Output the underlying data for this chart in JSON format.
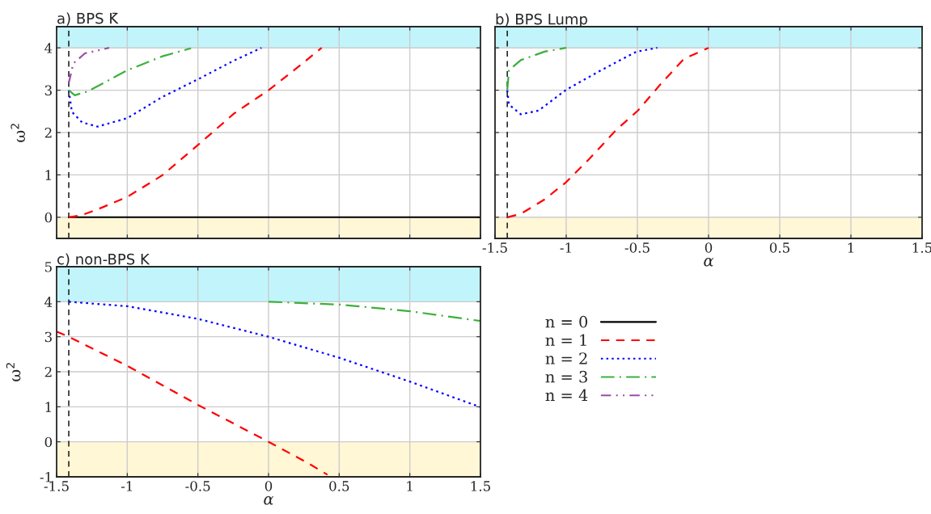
{
  "chart_data": [
    {
      "type": "line",
      "title": "a) BPS K̄",
      "ylabel": "ω$^{2}$",
      "xlim": [
        -1.5,
        1.5
      ],
      "xticks": [
        -1.5,
        -1,
        -0.5,
        0,
        0.5,
        1,
        1.5
      ],
      "ylim": [
        -0.5,
        4.5
      ],
      "yticks": [
        0,
        1,
        2,
        3,
        4
      ],
      "tick_labels": "y",
      "grid": true,
      "legend": "bottom right",
      "bands": [
        {
          "axis": "y",
          "from": 4,
          "to": 4.5,
          "color": "#c1f5fb"
        },
        {
          "axis": "y",
          "from": -0.5,
          "to": 0,
          "color": "#fff7d6"
        }
      ],
      "ref_lines": [
        {
          "axis": "x",
          "value": -1.414,
          "color": "#000000",
          "line_style": "dashed"
        }
      ],
      "series": [
        {
          "name": "n = 0",
          "color": "#000000",
          "line_style": "solid",
          "x": [
            -1.414,
            1.5
          ],
          "values": [
            0,
            0
          ]
        },
        {
          "name": "n = 1",
          "color": "#ff0000",
          "line_style": "dashed",
          "x": [
            -1.414,
            -1.321,
            -1.2,
            -1.0,
            -0.752,
            -0.498,
            -0.244,
            0,
            0.18,
            0.376
          ],
          "values": [
            0,
            0.05,
            0.2,
            0.48,
            0.99,
            1.71,
            2.45,
            3.0,
            3.47,
            4.0
          ]
        },
        {
          "name": "n = 2",
          "color": "#0000ff",
          "line_style": "dotted",
          "x": [
            -1.414,
            -1.392,
            -1.32,
            -1.21,
            -1.0,
            -0.752,
            -0.498,
            -0.244,
            -0.05
          ],
          "values": [
            3.0,
            2.49,
            2.24,
            2.14,
            2.34,
            2.84,
            3.26,
            3.7,
            4.0
          ]
        },
        {
          "name": "n = 3",
          "color": "#3cb03c",
          "line_style": "dashdot",
          "x": [
            -1.414,
            -1.372,
            -1.28,
            -1.0,
            -0.752,
            -0.549
          ],
          "values": [
            3.0,
            2.88,
            2.97,
            3.47,
            3.8,
            3.99
          ]
        },
        {
          "name": "n = 4",
          "color": "#9b4ea8",
          "line_style": "dashdotdot",
          "x": [
            -1.414,
            -1.382,
            -1.3,
            -1.128
          ],
          "values": [
            3.17,
            3.63,
            3.87,
            4.0
          ]
        }
      ]
    },
    {
      "type": "line",
      "title": "b) BPS Lump",
      "xlabel": "α",
      "xlim": [
        -1.5,
        1.5
      ],
      "xticks": [
        -1.5,
        -1,
        -0.5,
        0,
        0.5,
        1,
        1.5
      ],
      "ylim": [
        -0.5,
        4.5
      ],
      "yticks": [
        0,
        1,
        2,
        3,
        4
      ],
      "tick_labels": "x",
      "grid": true,
      "bands": [
        {
          "axis": "y",
          "from": 4,
          "to": 4.5,
          "color": "#c1f5fb"
        },
        {
          "axis": "y",
          "from": -0.5,
          "to": 0,
          "color": "#fff7d6"
        }
      ],
      "ref_lines": [
        {
          "axis": "x",
          "value": -1.414,
          "color": "#000000",
          "line_style": "dashed"
        }
      ],
      "series": [
        {
          "color": "#ff0000",
          "line_style": "dashed",
          "x": [
            -1.414,
            -1.319,
            -1.152,
            -1.0,
            -0.84,
            -0.652,
            -0.496,
            -0.34,
            -0.173,
            0
          ],
          "values": [
            0,
            0.08,
            0.42,
            0.83,
            1.37,
            2.05,
            2.52,
            3.13,
            3.74,
            4.0
          ]
        },
        {
          "color": "#0000ff",
          "line_style": "dotted",
          "x": [
            -1.414,
            -1.402,
            -1.319,
            -1.194,
            -1.0,
            -0.756,
            -0.506,
            -0.36
          ],
          "values": [
            3.0,
            2.66,
            2.43,
            2.52,
            3.01,
            3.47,
            3.91,
            4.0
          ]
        },
        {
          "color": "#3cb03c",
          "line_style": "dashdot",
          "x": [
            -1.414,
            -1.402,
            -1.319,
            -1.152,
            -1.0
          ],
          "values": [
            3.0,
            3.47,
            3.71,
            3.91,
            4.0
          ]
        }
      ]
    },
    {
      "type": "line",
      "title": "c) non-BPS K",
      "xlabel": "α",
      "ylabel": "ω$^{2}$",
      "xlim": [
        -1.5,
        1.5
      ],
      "xticks": [
        -1.5,
        -1,
        -0.5,
        0,
        0.5,
        1,
        1.5
      ],
      "ylim": [
        -1,
        5
      ],
      "yticks": [
        {
          "value": -1,
          "label": "-1"
        },
        0,
        1,
        2,
        3,
        4,
        5
      ],
      "grid": true,
      "bands": [
        {
          "axis": "y",
          "from": 4,
          "to": 5,
          "color": "#c1f5fb"
        },
        {
          "axis": "y",
          "from": -1,
          "to": 0,
          "color": "#fff7d6"
        }
      ],
      "ref_lines": [
        {
          "axis": "x",
          "value": -1.414,
          "color": "#000000",
          "line_style": "dashed"
        }
      ],
      "series": [
        {
          "color": "#ff0000",
          "line_style": "dashed",
          "x": [
            -1.5,
            -1.414,
            -1.0,
            -0.498,
            0,
            0.285,
            0.417
          ],
          "values": [
            3.15,
            3.0,
            2.17,
            1.05,
            0,
            -0.62,
            -0.94
          ]
        },
        {
          "color": "#0000ff",
          "line_style": "dotted",
          "x": [
            -1.414,
            -1.0,
            -0.5,
            0,
            0.5,
            1.0,
            1.5
          ],
          "values": [
            4.0,
            3.87,
            3.51,
            3.0,
            2.4,
            1.72,
            0.99
          ]
        },
        {
          "color": "#3cb03c",
          "line_style": "dashdot",
          "x": [
            0,
            0.5,
            1.0,
            1.5
          ],
          "values": [
            4.0,
            3.92,
            3.73,
            3.45
          ]
        }
      ]
    }
  ]
}
